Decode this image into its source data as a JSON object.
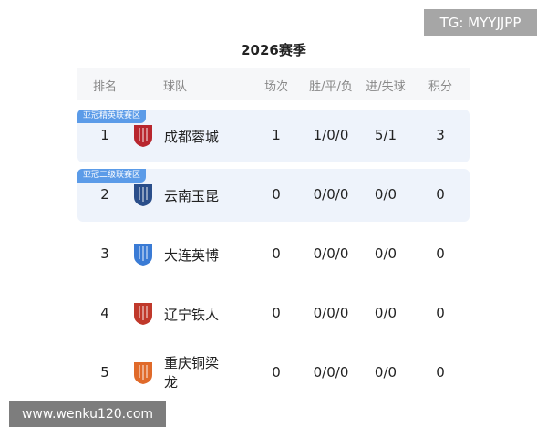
{
  "watermark_top": "TG: MYYJJPP",
  "watermark_bottom": "www.wenku120.com",
  "title": "2026赛季",
  "headers": {
    "rank": "排名",
    "team": "球队",
    "played": "场次",
    "wdl": "胜/平/负",
    "goals": "进/失球",
    "points": "积分"
  },
  "rows": [
    {
      "rank": "1",
      "tag": "亚冠精英联赛区",
      "team": "成都蓉城",
      "badge": "chengdu-rongcheng-crest",
      "badge_color": "#b8262e",
      "played": "1",
      "wdl": "1/0/0",
      "goals": "5/1",
      "points": "3"
    },
    {
      "rank": "2",
      "tag": "亚冠二级联赛区",
      "team": "云南玉昆",
      "badge": "yunnan-yukun-crest",
      "badge_color": "#2a4e8a",
      "played": "0",
      "wdl": "0/0/0",
      "goals": "0/0",
      "points": "0"
    },
    {
      "rank": "3",
      "team": "大连英博",
      "badge": "dalian-yingbo-crest",
      "badge_color": "#3a7bd5",
      "played": "0",
      "wdl": "0/0/0",
      "goals": "0/0",
      "points": "0"
    },
    {
      "rank": "4",
      "team": "辽宁铁人",
      "badge": "liaoning-tieren-crest",
      "badge_color": "#c0392b",
      "played": "0",
      "wdl": "0/0/0",
      "goals": "0/0",
      "points": "0"
    },
    {
      "rank": "5",
      "team": "重庆铜梁龙",
      "team_line1": "重庆铜梁",
      "team_line2": "龙",
      "badge": "chongqing-tongliang-crest",
      "badge_color": "#e06a2a",
      "played": "0",
      "wdl": "0/0/0",
      "goals": "0/0",
      "points": "0"
    }
  ],
  "colors": {
    "highlight_row": "#eef3fb",
    "tag": "#5b9be8"
  }
}
